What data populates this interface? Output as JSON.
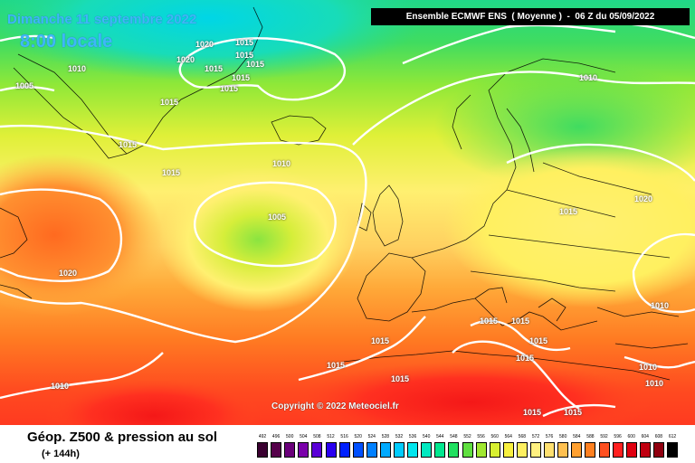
{
  "header": {
    "date": "Dimanche 11 septembre 2022",
    "time": "8:00 locale",
    "run": "Ensemble ECMWF ENS  ( Moyenne )  -  06 Z du 05/09/2022"
  },
  "copyright": "Copyright © 2022 Meteociel.fr",
  "footer": {
    "title": "Géop. Z500 & pression au sol",
    "subtitle": "(+ 144h)"
  },
  "isobar_labels": [
    {
      "text": "1020"
    },
    {
      "text": "1015"
    },
    {
      "text": "1020"
    },
    {
      "text": "1015"
    },
    {
      "text": "1015"
    },
    {
      "text": "1015"
    },
    {
      "text": "1015"
    },
    {
      "text": "1010"
    },
    {
      "text": "1005"
    },
    {
      "text": "1015"
    },
    {
      "text": "1015"
    },
    {
      "text": "1015"
    },
    {
      "text": "1010"
    },
    {
      "text": "1005"
    },
    {
      "text": "1010"
    },
    {
      "text": "1020"
    },
    {
      "text": "1015"
    },
    {
      "text": "1020"
    },
    {
      "text": "1010"
    },
    {
      "text": "1015"
    },
    {
      "text": "1015"
    },
    {
      "text": "1015"
    },
    {
      "text": "1015"
    },
    {
      "text": "1015"
    },
    {
      "text": "1015"
    },
    {
      "text": "1015"
    },
    {
      "text": "1010"
    },
    {
      "text": "1010"
    },
    {
      "text": "1010"
    },
    {
      "text": "1015"
    },
    {
      "text": "1015"
    },
    {
      "text": "1015"
    }
  ],
  "legend": {
    "values": [
      "492",
      "496",
      "500",
      "504",
      "508",
      "512",
      "516",
      "520",
      "524",
      "528",
      "532",
      "536",
      "540",
      "544",
      "548",
      "552",
      "556",
      "560",
      "564",
      "568",
      "572",
      "576",
      "580",
      "584",
      "588",
      "592",
      "596",
      "600",
      "604",
      "608",
      "612"
    ],
    "colors": [
      "#3a0030",
      "#55004a",
      "#6a007a",
      "#7a00aa",
      "#5a00d6",
      "#2a00f0",
      "#0020ff",
      "#0050ff",
      "#0080ff",
      "#00aaff",
      "#00ccff",
      "#00e6ee",
      "#00e8c0",
      "#00e890",
      "#20e060",
      "#60e040",
      "#a0e830",
      "#d8f030",
      "#f8f040",
      "#fff060",
      "#fff080",
      "#ffe070",
      "#ffc050",
      "#ffa030",
      "#ff8020",
      "#ff5020",
      "#ff2020",
      "#e00010",
      "#c00010",
      "#900010",
      "#000000"
    ]
  }
}
